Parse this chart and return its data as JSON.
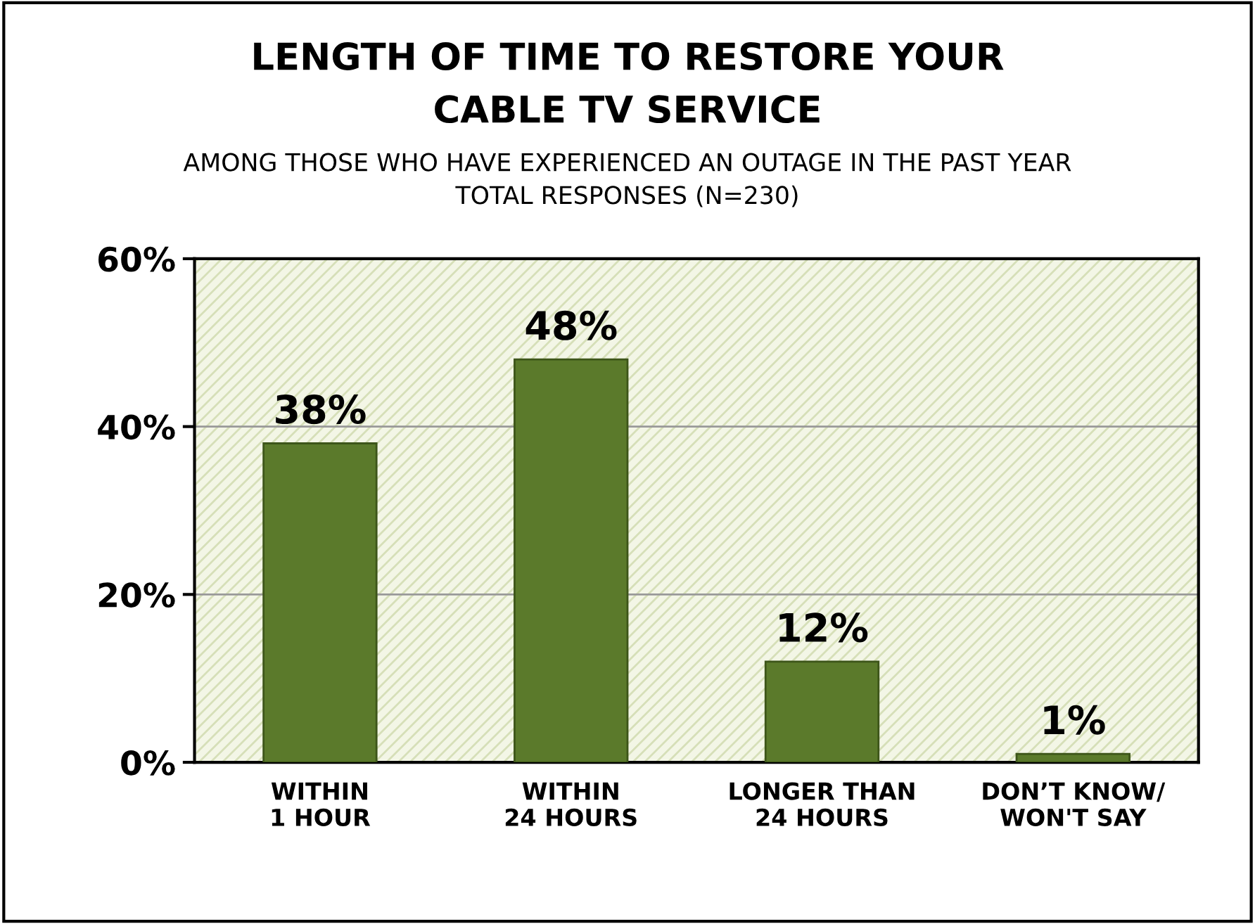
{
  "chart_data": {
    "type": "bar",
    "title": "LENGTH OF TIME TO RESTORE YOUR\nCABLE TV SERVICE",
    "subtitle": "AMONG THOSE WHO HAVE EXPERIENCED AN OUTAGE IN THE PAST YEAR\nTOTAL RESPONSES (N=230)",
    "categories": [
      "WITHIN\n1 HOUR",
      "WITHIN\n24 HOURS",
      "LONGER THAN\n24 HOURS",
      "DON’T KNOW/\nWON'T SAY"
    ],
    "values": [
      38,
      48,
      12,
      1
    ],
    "value_labels": [
      "38%",
      "48%",
      "12%",
      "1%"
    ],
    "color": "#5b7a2b",
    "ylim": [
      0,
      60
    ],
    "yticks": [
      {
        "value": 0,
        "label": "0%"
      },
      {
        "value": 20,
        "label": "20%"
      },
      {
        "value": 40,
        "label": "40%"
      },
      {
        "value": 60,
        "label": "60%"
      }
    ],
    "grid": "y"
  }
}
